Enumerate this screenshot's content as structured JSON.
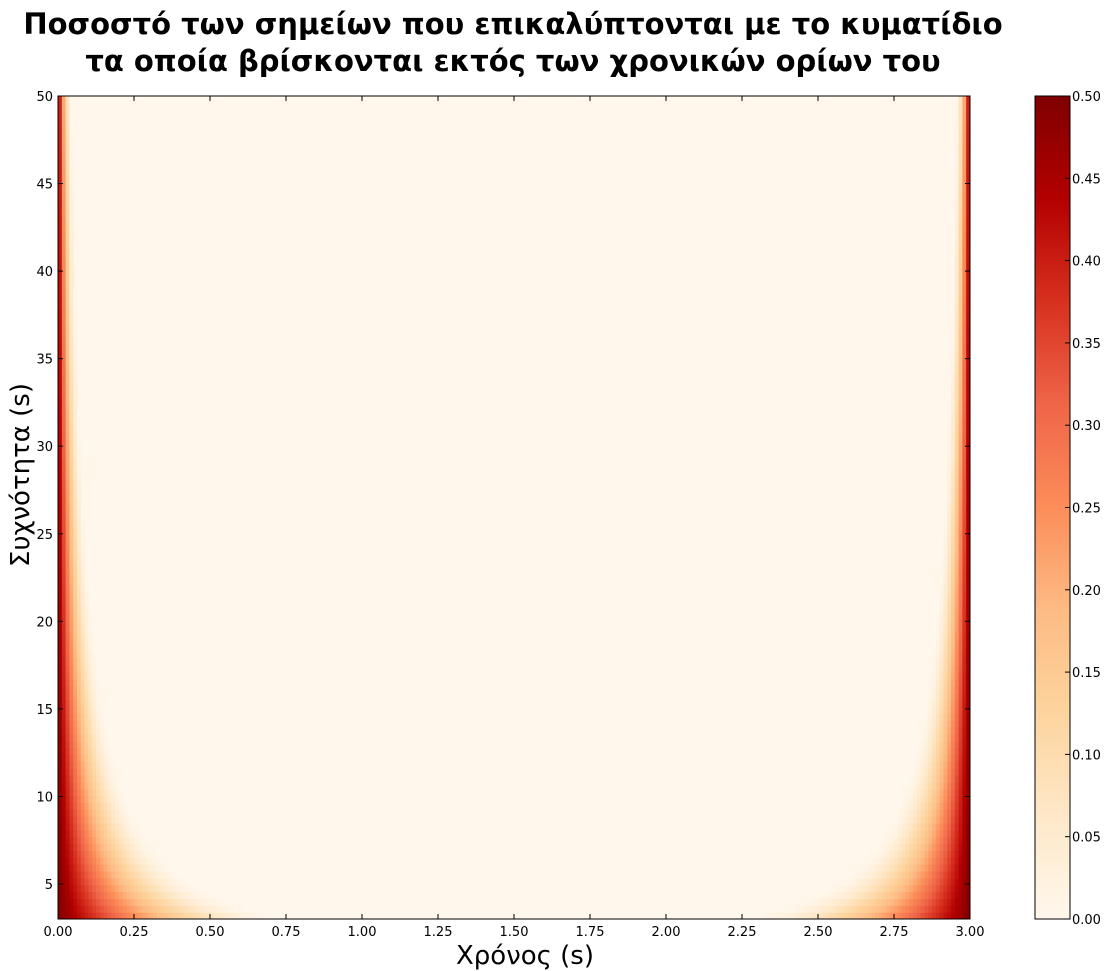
{
  "chart_data": {
    "type": "heatmap",
    "title_lines": [
      "Ποσοστό των σημείων που επικαλύπτονται με το κυματίδιο",
      "τα οποία βρίσκονται εκτός των χρονικών ορίων του"
    ],
    "xlabel": "Χρόνος (s)",
    "ylabel": "Συχνότητα (s)",
    "xlim": [
      0.0,
      3.0
    ],
    "ylim": [
      3,
      50
    ],
    "x_ticks": [
      "0.00",
      "0.25",
      "0.50",
      "0.75",
      "1.00",
      "1.25",
      "1.50",
      "1.75",
      "2.00",
      "2.25",
      "2.50",
      "2.75",
      "3.00"
    ],
    "y_ticks": [
      "5",
      "10",
      "15",
      "20",
      "25",
      "30",
      "35",
      "40",
      "45",
      "50"
    ],
    "colorbar": {
      "range": [
        0.0,
        0.5
      ],
      "ticks": [
        "0.00",
        "0.05",
        "0.10",
        "0.15",
        "0.20",
        "0.25",
        "0.30",
        "0.35",
        "0.40",
        "0.45",
        "0.50"
      ],
      "colormap": "OrRd",
      "colors": [
        "#fff7ec",
        "#fee8c8",
        "#fdd49e",
        "#fdbb84",
        "#fc8d59",
        "#ef6548",
        "#d7301f",
        "#b30000",
        "#7f0000"
      ]
    },
    "grid": false,
    "description_values": {
      "edge_value": 0.5,
      "interior_value": 0.0
    }
  }
}
